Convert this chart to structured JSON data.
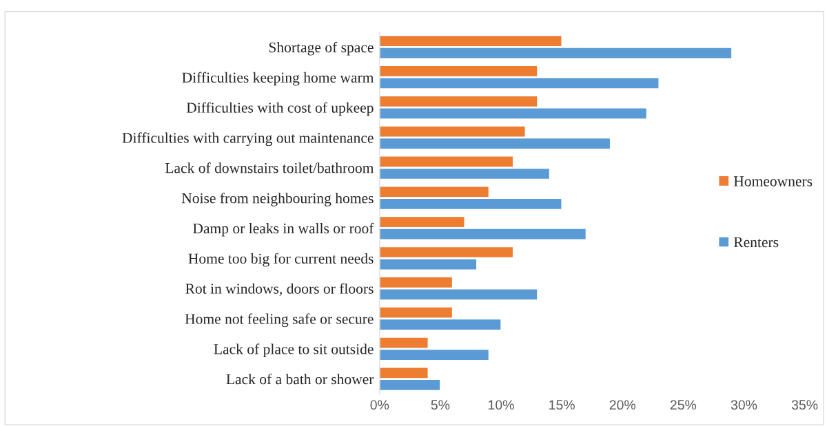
{
  "chart_data": {
    "type": "bar",
    "orientation": "horizontal",
    "categories": [
      "Shortage of space",
      "Difficulties keeping home warm",
      "Difficulties with cost of upkeep",
      "Difficulties with carrying out maintenance",
      "Lack of downstairs toilet/bathroom",
      "Noise from neighbouring homes",
      "Damp or leaks in walls or roof",
      "Home too big for current needs",
      "Rot in windows, doors or floors",
      "Home not feeling safe or secure",
      "Lack of place to sit outside",
      "Lack of a bath or shower"
    ],
    "series": [
      {
        "name": "Homeowners",
        "color": "#ed7d31",
        "values": [
          15,
          13,
          13,
          12,
          11,
          9,
          7,
          11,
          6,
          6,
          4,
          4
        ]
      },
      {
        "name": "Renters",
        "color": "#5b9bd5",
        "values": [
          29,
          23,
          22,
          19,
          14,
          15,
          17,
          8,
          13,
          10,
          9,
          5
        ]
      }
    ],
    "xlim": [
      0,
      35
    ],
    "xticks": [
      {
        "value": 0,
        "label": "0%"
      },
      {
        "value": 5,
        "label": "5%"
      },
      {
        "value": 10,
        "label": "10%"
      },
      {
        "value": 15,
        "label": "15%"
      },
      {
        "value": 20,
        "label": "20%"
      },
      {
        "value": 25,
        "label": "25%"
      },
      {
        "value": 30,
        "label": "30%"
      },
      {
        "value": 35,
        "label": "35%"
      }
    ],
    "grid": false,
    "legend": "right"
  }
}
